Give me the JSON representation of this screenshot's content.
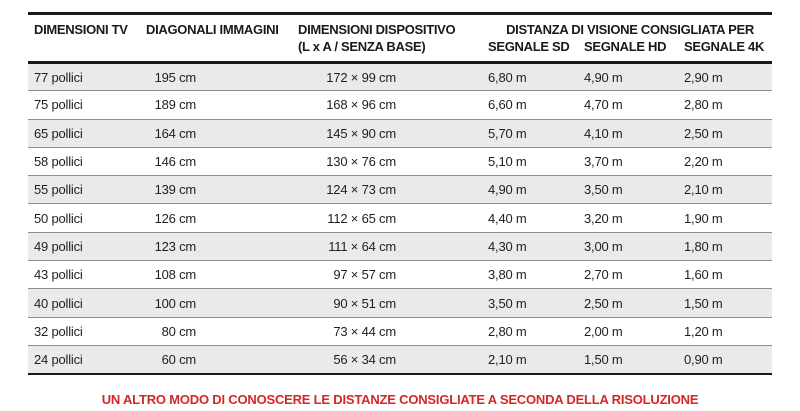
{
  "headers": {
    "tv": "DIMENSIONI TV",
    "diag": "DIAGONALI IMMAGINI",
    "dev_line1": "DIMENSIONI DISPOSITIVO",
    "dev_line2": "(L x A / SENZA BASE)",
    "group": "DISTANZA DI VISIONE CONSIGLIATA PER",
    "sd": "SEGNALE SD",
    "hd": "SEGNALE HD",
    "k4": "SEGNALE 4K"
  },
  "rows": [
    {
      "tv": "77 pollici",
      "diag": "195 cm",
      "dev": "172 × 99 cm",
      "sd": "6,80 m",
      "hd": "4,90 m",
      "k4": "2,90 m"
    },
    {
      "tv": "75 pollici",
      "diag": "189 cm",
      "dev": "168 × 96 cm",
      "sd": "6,60 m",
      "hd": "4,70 m",
      "k4": "2,80 m"
    },
    {
      "tv": "65 pollici",
      "diag": "164 cm",
      "dev": "145 × 90 cm",
      "sd": "5,70 m",
      "hd": "4,10 m",
      "k4": "2,50 m"
    },
    {
      "tv": "58 pollici",
      "diag": "146 cm",
      "dev": "130 × 76 cm",
      "sd": "5,10 m",
      "hd": "3,70 m",
      "k4": "2,20 m"
    },
    {
      "tv": "55 pollici",
      "diag": "139 cm",
      "dev": "124 × 73 cm",
      "sd": "4,90 m",
      "hd": "3,50 m",
      "k4": "2,10 m"
    },
    {
      "tv": "50 pollici",
      "diag": "126 cm",
      "dev": "112 × 65 cm",
      "sd": "4,40 m",
      "hd": "3,20 m",
      "k4": "1,90 m"
    },
    {
      "tv": "49 pollici",
      "diag": "123 cm",
      "dev": "111 × 64 cm",
      "sd": "4,30 m",
      "hd": "3,00 m",
      "k4": "1,80 m"
    },
    {
      "tv": "43 pollici",
      "diag": "108 cm",
      "dev": "97 × 57 cm",
      "sd": "3,80 m",
      "hd": "2,70 m",
      "k4": "1,60 m"
    },
    {
      "tv": "40 pollici",
      "diag": "100 cm",
      "dev": "90 × 51 cm",
      "sd": "3,50 m",
      "hd": "2,50 m",
      "k4": "1,50 m"
    },
    {
      "tv": "32 pollici",
      "diag": "80 cm",
      "dev": "73 × 44 cm",
      "sd": "2,80 m",
      "hd": "2,00 m",
      "k4": "1,20 m"
    },
    {
      "tv": "24 pollici",
      "diag": "60 cm",
      "dev": "56 × 34 cm",
      "sd": "2,10 m",
      "hd": "1,50 m",
      "k4": "0,90 m"
    }
  ],
  "caption": "UN ALTRO MODO DI CONOSCERE LE DISTANZE CONSIGLIATE A SECONDA DELLA RISOLUZIONE",
  "colors": {
    "caption": "#d42727",
    "stripe": "#e9eaec",
    "rule": "#1a1a1a"
  }
}
